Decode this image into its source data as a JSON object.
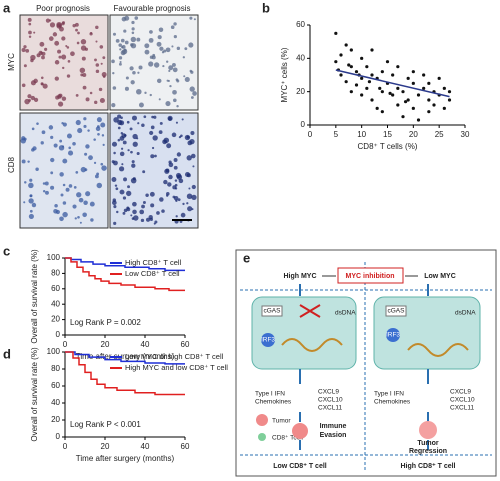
{
  "panel_labels": [
    "a",
    "b",
    "c",
    "d",
    "e"
  ],
  "panel_a": {
    "columns": [
      "Poor prognosis",
      "Favourable prognosis"
    ],
    "rows": [
      "MYC",
      "CD8"
    ]
  },
  "chart_data": [
    {
      "type": "scatter",
      "y_label": "MYC⁺ cells (%)",
      "x_label": "CD8⁺ T cells (%)",
      "color": "#111111",
      "line_color": "#2b3a8c",
      "x": [
        5,
        5,
        6,
        6,
        7,
        7,
        8,
        8,
        8,
        9,
        9,
        10,
        10,
        10,
        11,
        11,
        12,
        12,
        12,
        13,
        13,
        14,
        14,
        14,
        15,
        15,
        16,
        16,
        17,
        17,
        17,
        18,
        18,
        19,
        19,
        20,
        20,
        20,
        21,
        21,
        22,
        22,
        23,
        23,
        23,
        24,
        24,
        25,
        25,
        26,
        26,
        27,
        27,
        5.5,
        7.5,
        9.5,
        11.5,
        13.5,
        15.5,
        18.5
      ],
      "y": [
        55,
        38,
        42,
        30,
        48,
        26,
        35,
        20,
        45,
        32,
        24,
        28,
        40,
        18,
        35,
        22,
        45,
        15,
        30,
        28,
        10,
        32,
        20,
        8,
        25,
        38,
        18,
        30,
        22,
        12,
        35,
        20,
        5,
        28,
        15,
        25,
        10,
        32,
        18,
        3,
        22,
        30,
        15,
        8,
        25,
        20,
        12,
        18,
        28,
        10,
        22,
        15,
        20,
        33,
        36,
        30,
        26,
        22,
        19,
        14
      ],
      "trend": {
        "x": [
          5,
          27
        ],
        "y": [
          33,
          17
        ]
      },
      "xlim": [
        0,
        30
      ],
      "ylim": [
        0,
        60
      ],
      "xticks": [
        0,
        5,
        10,
        15,
        20,
        25,
        30
      ],
      "yticks": [
        0,
        20,
        40,
        60
      ]
    },
    {
      "type": "step_line",
      "y_label": "Overall of survival rate (%)",
      "x_label": "Time after surgery (months)",
      "annotation": "Log Rank P = 0.002",
      "series": [
        {
          "name": "High CD8⁺ T cell",
          "color": "#1f2fd6",
          "x": [
            0,
            3,
            3,
            8,
            8,
            14,
            14,
            20,
            20,
            30,
            30,
            42,
            42,
            50,
            50,
            60
          ],
          "y": [
            100,
            100,
            98,
            98,
            95,
            95,
            92,
            92,
            90,
            90,
            88,
            88,
            86,
            86,
            84,
            84
          ]
        },
        {
          "name": "Low CD8⁺ T cell",
          "color": "#e02020",
          "x": [
            0,
            3,
            3,
            6,
            6,
            9,
            9,
            12,
            12,
            15,
            15,
            18,
            18,
            22,
            22,
            28,
            28,
            35,
            35,
            45,
            45,
            52,
            52,
            60
          ],
          "y": [
            100,
            100,
            95,
            95,
            88,
            88,
            82,
            82,
            77,
            77,
            73,
            73,
            70,
            70,
            67,
            67,
            65,
            65,
            62,
            62,
            60,
            60,
            58,
            58
          ]
        }
      ],
      "xlim": [
        0,
        60
      ],
      "ylim": [
        0,
        100
      ],
      "xticks": [
        0,
        20,
        40,
        60
      ],
      "yticks": [
        0,
        20,
        40,
        60,
        80,
        100
      ]
    },
    {
      "type": "step_line",
      "y_label": "Overall of survival rate (%)",
      "x_label": "Time after surgery (months)",
      "annotation": "Log Rank P < 0.001",
      "series": [
        {
          "name": "Low MYC or high CD8⁺ T cell",
          "color": "#1f2fd6",
          "x": [
            0,
            5,
            5,
            12,
            12,
            20,
            20,
            28,
            28,
            40,
            40,
            50,
            50,
            60
          ],
          "y": [
            100,
            100,
            97,
            97,
            94,
            94,
            91,
            91,
            89,
            89,
            87,
            87,
            86,
            86
          ]
        },
        {
          "name": "High MYC and low CD8⁺ T cell",
          "color": "#e02020",
          "x": [
            0,
            4,
            4,
            7,
            7,
            10,
            10,
            13,
            13,
            16,
            16,
            20,
            20,
            26,
            26,
            35,
            35,
            45,
            45,
            60
          ],
          "y": [
            100,
            100,
            93,
            93,
            85,
            85,
            76,
            76,
            68,
            68,
            62,
            62,
            58,
            58,
            55,
            55,
            52,
            52,
            50,
            50
          ]
        }
      ],
      "xlim": [
        0,
        60
      ],
      "ylim": [
        0,
        100
      ],
      "xticks": [
        0,
        20,
        40,
        60
      ],
      "yticks": [
        0,
        20,
        40,
        60,
        80,
        100
      ]
    }
  ],
  "panel_e": {
    "high_myc": "High MYC",
    "inhibition": "MYC inhibition",
    "low_myc": "Low MYC",
    "left": {
      "cgas": "cGAS",
      "dsdna": "dsDNA",
      "irf3": "IRF3",
      "ifn": "Type I IFN",
      "chemokines": "Chemokines",
      "cxcl": [
        "CXCL9",
        "CXCL10",
        "CXCL11"
      ],
      "tumor": "Tumor",
      "tcell": "CD8⁺ Tcell",
      "outcome1": "Immune",
      "outcome2": "Evasion",
      "bottom": "Low CD8⁺ T cell"
    },
    "right": {
      "cgas": "cGAS",
      "dsdna": "dsDNA",
      "irf3": "IRF3",
      "ifn": "Type I IFN",
      "chemokines": "Chemokines",
      "cxcl": [
        "CXCL9",
        "CXCL10",
        "CXCL11"
      ],
      "outcome1": "Tumor",
      "outcome2": "Regression",
      "bottom": "High CD8⁺ T cell"
    }
  }
}
